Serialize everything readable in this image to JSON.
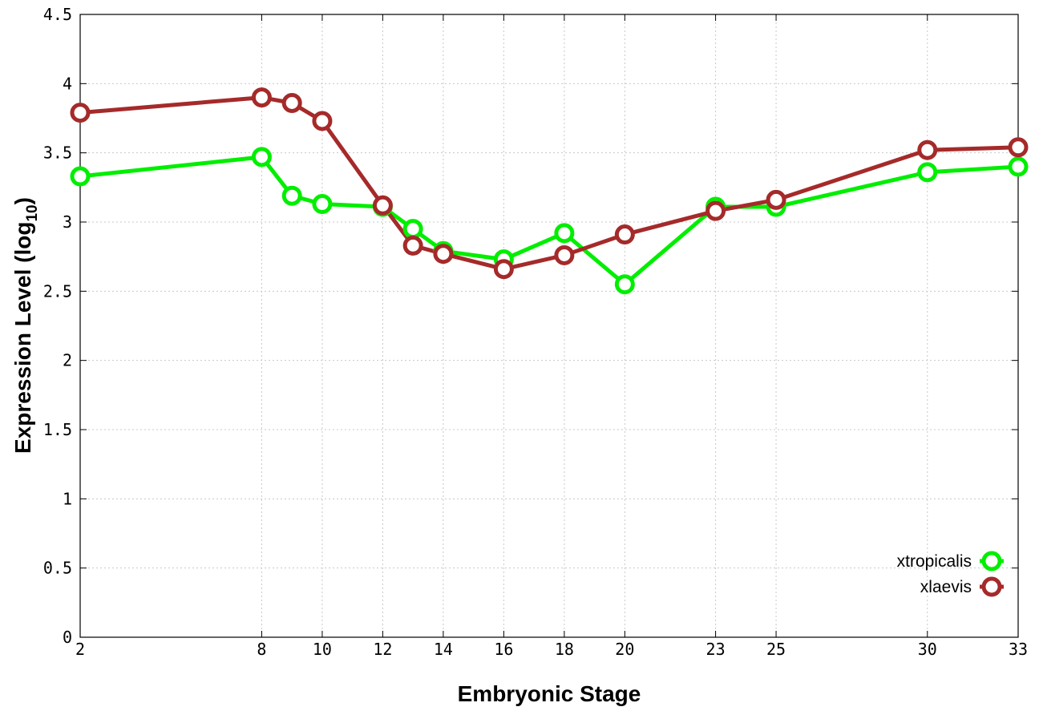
{
  "chart_data": {
    "type": "line",
    "xlabel": "Embryonic Stage",
    "ylabel": "Expression Level (log",
    "ylabel_sub": "10",
    "ylabel_end": ")",
    "xlim": [
      2,
      33
    ],
    "ylim": [
      0,
      4.5
    ],
    "x_ticks": [
      2,
      8,
      10,
      12,
      14,
      16,
      18,
      20,
      23,
      25,
      30,
      33
    ],
    "y_ticks": [
      0,
      0.5,
      1,
      1.5,
      2,
      2.5,
      3,
      3.5,
      4,
      4.5
    ],
    "y_tick_labels": [
      "0",
      "0.5",
      "1",
      "1.5",
      "2",
      "2.5",
      "3",
      "3.5",
      "4",
      "4.5"
    ],
    "grid": true,
    "legend_position": "bottom-right",
    "x": [
      2,
      8,
      9,
      10,
      12,
      13,
      14,
      16,
      18,
      20,
      23,
      25,
      30,
      33
    ],
    "series": [
      {
        "name": "xtropicalis",
        "color": "#00ee00",
        "values": [
          3.33,
          3.47,
          3.19,
          3.13,
          3.11,
          2.95,
          2.79,
          2.73,
          2.92,
          2.55,
          3.11,
          3.11,
          3.36,
          3.4
        ]
      },
      {
        "name": "xlaevis",
        "color": "#a52a2a",
        "values": [
          3.79,
          3.9,
          3.86,
          3.73,
          3.12,
          2.83,
          2.77,
          2.66,
          2.76,
          2.91,
          3.08,
          3.16,
          3.52,
          3.54
        ]
      }
    ]
  }
}
